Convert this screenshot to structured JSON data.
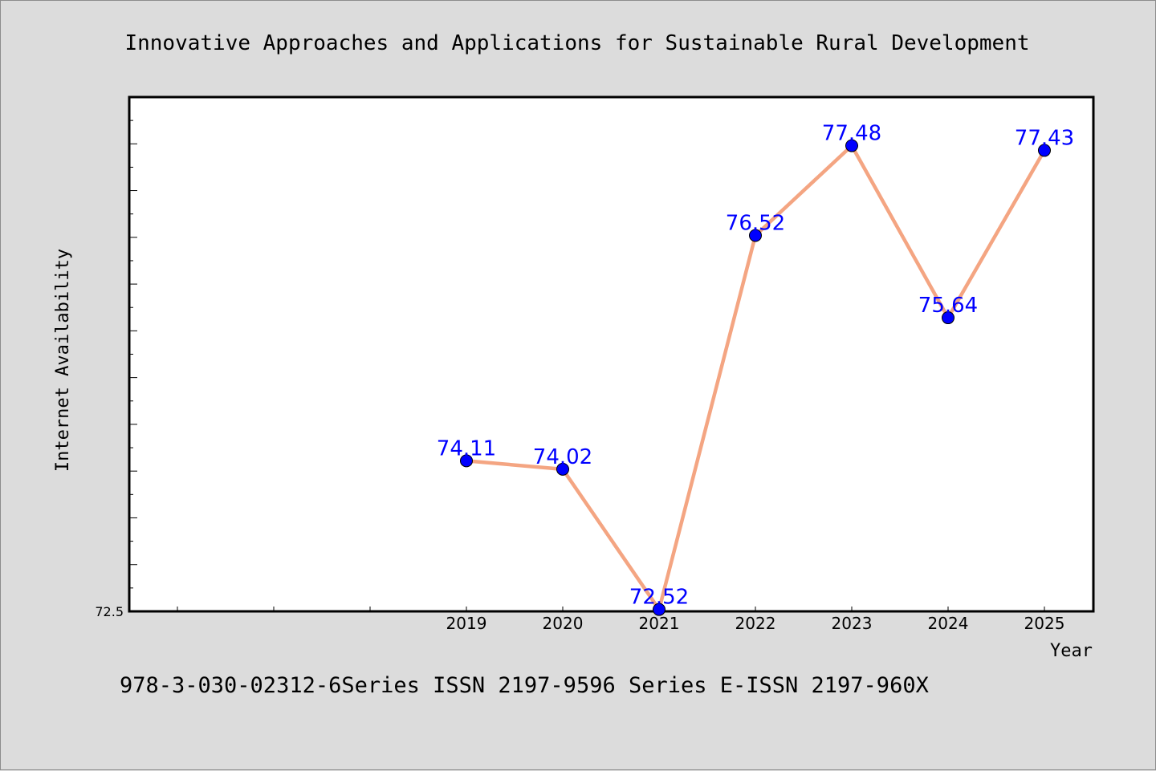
{
  "chart_data": {
    "type": "line",
    "title": "Innovative Approaches and Applications for Sustainable Rural Development",
    "xlabel": "Year",
    "ylabel": "Internet Availability",
    "categories": [
      "2019",
      "2020",
      "2021",
      "2022",
      "2023",
      "2024",
      "2025"
    ],
    "series": [
      {
        "values": [
          74.11,
          74.02,
          72.52,
          76.52,
          77.48,
          75.64,
          77.43
        ]
      }
    ],
    "data_labels": [
      "74.11",
      "74.02",
      "72.52",
      "76.52",
      "77.48",
      "75.64",
      "77.43"
    ],
    "y_tick_labels": [
      "72.5"
    ],
    "ylim": [
      72.5,
      78.0
    ],
    "grid": false,
    "colors": {
      "line": "#f4a582",
      "marker": "#0000ff",
      "label": "#0000ff",
      "background": "#dcdcdc",
      "plot_bg": "#ffffff"
    }
  },
  "footer_text": "978-3-030-02312-6Series ISSN 2197-9596 Series E-ISSN 2197-960X"
}
